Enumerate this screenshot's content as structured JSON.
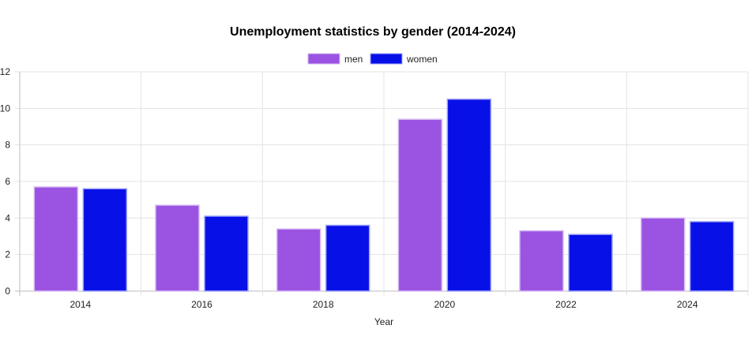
{
  "chart_data": {
    "type": "bar",
    "title": "Unemployment statistics by gender (2014-2024)",
    "xlabel": "Year",
    "ylabel": "",
    "categories": [
      "2014",
      "2016",
      "2018",
      "2020",
      "2022",
      "2024"
    ],
    "series": [
      {
        "name": "men",
        "values": [
          5.7,
          4.7,
          3.4,
          9.4,
          3.3,
          4.0
        ],
        "color": "#9b53e2",
        "border": "#d6b9f4"
      },
      {
        "name": "women",
        "values": [
          5.6,
          4.1,
          3.6,
          10.5,
          3.1,
          3.8
        ],
        "color": "#0810e8",
        "border": "#9ea3f7"
      }
    ],
    "ylim": [
      0,
      12
    ],
    "yticks": [
      "0",
      "2",
      "4",
      "6",
      "8",
      "10",
      "12"
    ],
    "grid": true,
    "legend_position": "top-center"
  }
}
